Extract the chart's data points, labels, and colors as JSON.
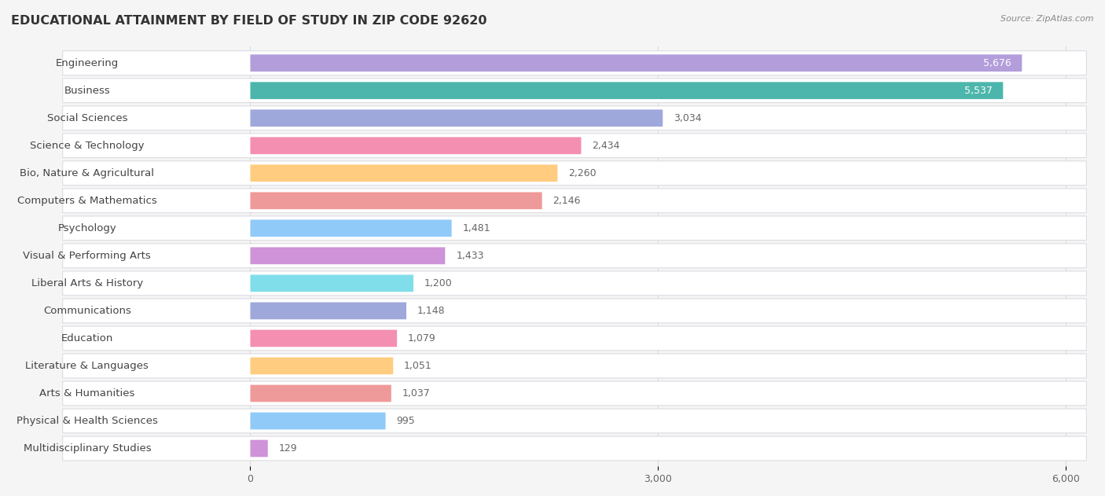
{
  "title": "EDUCATIONAL ATTAINMENT BY FIELD OF STUDY IN ZIP CODE 92620",
  "source": "Source: ZipAtlas.com",
  "categories": [
    "Engineering",
    "Business",
    "Social Sciences",
    "Science & Technology",
    "Bio, Nature & Agricultural",
    "Computers & Mathematics",
    "Psychology",
    "Visual & Performing Arts",
    "Liberal Arts & History",
    "Communications",
    "Education",
    "Literature & Languages",
    "Arts & Humanities",
    "Physical & Health Sciences",
    "Multidisciplinary Studies"
  ],
  "values": [
    5676,
    5537,
    3034,
    2434,
    2260,
    2146,
    1481,
    1433,
    1200,
    1148,
    1079,
    1051,
    1037,
    995,
    129
  ],
  "bar_colors": [
    "#b39ddb",
    "#4db6ac",
    "#9fa8da",
    "#f48fb1",
    "#ffcc80",
    "#ef9a9a",
    "#90caf9",
    "#ce93d8",
    "#80deea",
    "#9fa8da",
    "#f48fb1",
    "#ffcc80",
    "#ef9a9a",
    "#90caf9",
    "#ce93d8"
  ],
  "xlim": [
    0,
    6000
  ],
  "xticks": [
    0,
    3000,
    6000
  ],
  "background_color": "#f0f0f0",
  "row_bg_color": "#e8e8ee",
  "bar_bg_color": "#f8f8f8",
  "title_fontsize": 11.5,
  "label_fontsize": 9.5,
  "value_fontsize": 9
}
